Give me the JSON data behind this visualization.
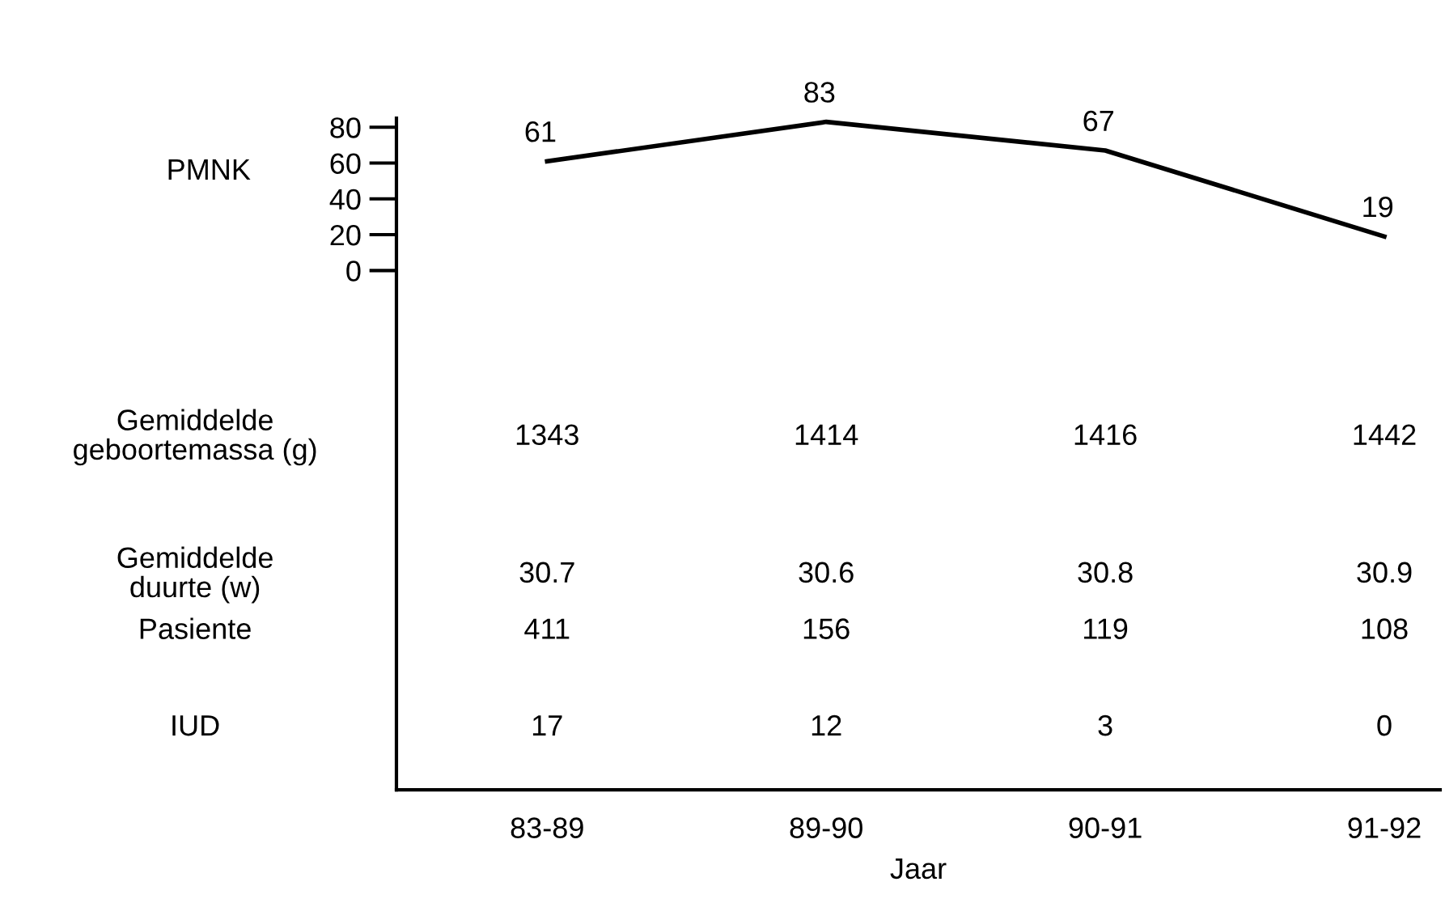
{
  "chart_data": {
    "type": "line",
    "ylabel": "PMNK",
    "xlabel": "Jaar",
    "categories": [
      "83-89",
      "89-90",
      "90-91",
      "91-92"
    ],
    "series": [
      {
        "color": "#000000",
        "values": [
          61,
          83,
          67,
          19
        ]
      }
    ],
    "data_labels": true,
    "ylim": [
      -290,
      85
    ],
    "yticks": [
      0,
      20,
      40,
      60,
      80
    ],
    "grid": false,
    "legend": false,
    "marker": "none",
    "line_style": "solid",
    "annotations": [
      "Gemiddelde\ngeboortemassa (g)",
      "1343",
      "1414",
      "1416",
      "1442",
      "Gemiddelde\nduurte (w)",
      "30.7",
      "30.6",
      "30.8",
      "30.9",
      "Pasiente",
      "411",
      "156",
      "119",
      "108",
      "IUD",
      "17",
      "12",
      "3",
      "0"
    ]
  }
}
